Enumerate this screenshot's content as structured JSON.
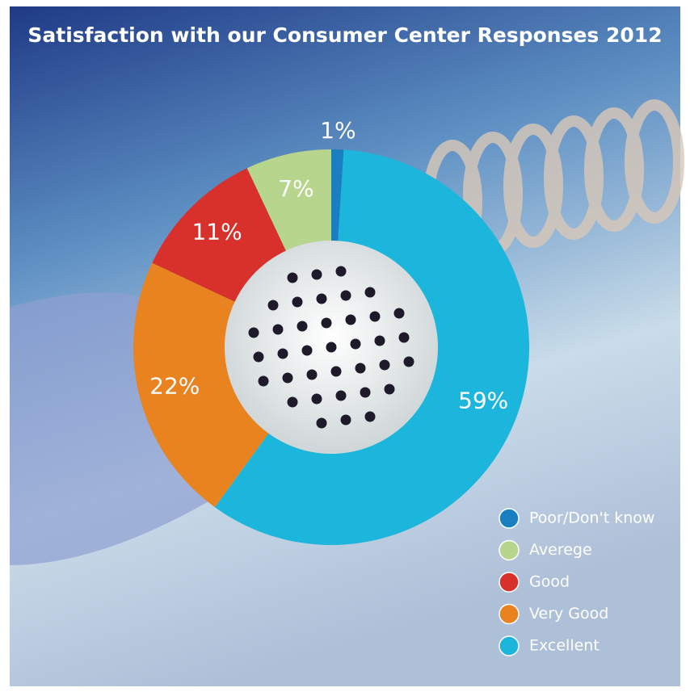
{
  "chart_data": {
    "type": "donut",
    "title": "Satisfaction with our Consumer Center Responses 2012",
    "categories": [
      "Poor/Don't know",
      "Averege",
      "Good",
      "Very Good",
      "Excellent"
    ],
    "values": [
      1,
      7,
      11,
      22,
      59
    ],
    "value_labels": [
      "1%",
      "7%",
      "11%",
      "22%",
      "59%"
    ],
    "colors": [
      "#1a7fc1",
      "#b7d58c",
      "#d8312b",
      "#e8831f",
      "#1cb6dc"
    ],
    "legend": "bottom-right"
  }
}
